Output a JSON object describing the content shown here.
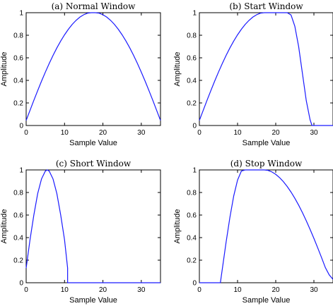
{
  "chart_data": [
    {
      "type": "line",
      "title": "(a) Normal Window",
      "xlabel": "Sample Value",
      "ylabel": "Amplitude",
      "xlim": [
        0,
        35
      ],
      "ylim": [
        0,
        1
      ],
      "xticks": [
        "0",
        "10",
        "20",
        "30"
      ],
      "yticks": [
        "0",
        "0.2",
        "0.4",
        "0.6",
        "0.8",
        "1"
      ],
      "grid": false,
      "series": [
        {
          "color": "#1a1aff",
          "x": [
            0,
            1,
            2,
            3,
            4,
            5,
            6,
            7,
            8,
            9,
            10,
            11,
            12,
            13,
            14,
            15,
            16,
            17,
            18,
            19,
            20,
            21,
            22,
            23,
            24,
            25,
            26,
            27,
            28,
            29,
            30,
            31,
            32,
            33,
            34,
            35
          ],
          "y": [
            0.045,
            0.134,
            0.223,
            0.309,
            0.393,
            0.473,
            0.549,
            0.621,
            0.688,
            0.749,
            0.804,
            0.853,
            0.896,
            0.932,
            0.961,
            0.982,
            0.996,
            1.0,
            1.0,
            0.996,
            0.982,
            0.961,
            0.932,
            0.896,
            0.853,
            0.804,
            0.749,
            0.688,
            0.621,
            0.549,
            0.473,
            0.393,
            0.309,
            0.223,
            0.134,
            0.045
          ]
        }
      ]
    },
    {
      "type": "line",
      "title": "(b) Start Window",
      "xlabel": "Sample Value",
      "ylabel": "Amplitude",
      "xlim": [
        0,
        35
      ],
      "ylim": [
        0,
        1
      ],
      "xticks": [
        "0",
        "10",
        "20",
        "30"
      ],
      "yticks": [
        "0",
        "0.2",
        "0.4",
        "0.6",
        "0.8",
        "1"
      ],
      "grid": false,
      "series": [
        {
          "color": "#1a1aff",
          "x": [
            0,
            1,
            2,
            3,
            4,
            5,
            6,
            7,
            8,
            9,
            10,
            11,
            12,
            13,
            14,
            15,
            16,
            17,
            18,
            19,
            20,
            21,
            22,
            23,
            24,
            25,
            26,
            27,
            28,
            29,
            29.5,
            35
          ],
          "y": [
            0.045,
            0.134,
            0.223,
            0.309,
            0.393,
            0.473,
            0.549,
            0.621,
            0.688,
            0.749,
            0.804,
            0.853,
            0.896,
            0.932,
            0.961,
            0.982,
            0.996,
            1.0,
            1.0,
            1.0,
            1.0,
            1.0,
            1.0,
            1.0,
            0.98,
            0.88,
            0.7,
            0.46,
            0.22,
            0.05,
            0.0,
            0.0
          ]
        }
      ]
    },
    {
      "type": "line",
      "title": "(c) Short Window",
      "xlabel": "Sample Value",
      "ylabel": "Amplitude",
      "xlim": [
        0,
        35
      ],
      "ylim": [
        0,
        1
      ],
      "xticks": [
        "0",
        "10",
        "20",
        "30"
      ],
      "yticks": [
        "0",
        "0.2",
        "0.4",
        "0.6",
        "0.8",
        "1"
      ],
      "grid": false,
      "series": [
        {
          "color": "#1a1aff",
          "x": [
            0,
            1,
            2,
            3,
            4,
            5,
            5.5,
            6,
            7,
            8,
            9,
            10,
            10.8,
            10.8,
            35
          ],
          "y": [
            0.13,
            0.38,
            0.6,
            0.79,
            0.92,
            0.99,
            1.0,
            0.99,
            0.92,
            0.79,
            0.6,
            0.38,
            0.13,
            0.0,
            0.0
          ]
        }
      ]
    },
    {
      "type": "line",
      "title": "(d) Stop Window",
      "xlabel": "Sample Value",
      "ylabel": "Amplitude",
      "xlim": [
        0,
        35
      ],
      "ylim": [
        0,
        1
      ],
      "xticks": [
        "0",
        "10",
        "20",
        "30"
      ],
      "yticks": [
        "0",
        "0.2",
        "0.4",
        "0.6",
        "0.8",
        "1"
      ],
      "grid": false,
      "series": [
        {
          "color": "#1a1aff",
          "x": [
            0,
            5.5,
            6,
            7,
            8,
            9,
            10,
            11,
            12,
            13,
            14,
            15,
            16,
            17,
            18,
            19,
            20,
            21,
            22,
            23,
            24,
            25,
            26,
            27,
            28,
            29,
            30,
            31,
            32,
            33,
            34,
            35
          ],
          "y": [
            0.0,
            0.0,
            0.12,
            0.36,
            0.58,
            0.77,
            0.91,
            0.99,
            1.0,
            1.0,
            1.0,
            1.0,
            1.0,
            1.0,
            0.996,
            0.982,
            0.961,
            0.932,
            0.896,
            0.853,
            0.804,
            0.749,
            0.688,
            0.621,
            0.549,
            0.473,
            0.393,
            0.309,
            0.223,
            0.134,
            0.07,
            0.03
          ]
        }
      ]
    }
  ]
}
